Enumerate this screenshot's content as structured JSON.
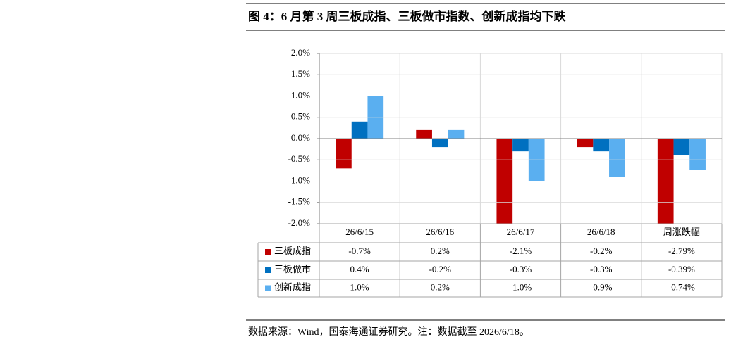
{
  "title": "图 4：6 月第 3 周三板成指、三板做市指数、创新成指均下跌",
  "source": "数据来源：Wind，国泰海通证券研究。注：数据截至 2026/6/18。",
  "chart_data": {
    "type": "bar",
    "categories": [
      "26/6/15",
      "26/6/16",
      "26/6/17",
      "26/6/18",
      "周涨跌幅"
    ],
    "series": [
      {
        "name": "三板成指",
        "color": "#c00000",
        "values": [
          -0.7,
          0.2,
          -2.1,
          -0.2,
          -2.79
        ],
        "value_labels": [
          "-0.7%",
          "0.2%",
          "-2.1%",
          "-0.2%",
          "-2.79%"
        ]
      },
      {
        "name": "三板做市",
        "color": "#0070c0",
        "values": [
          0.4,
          -0.2,
          -0.3,
          -0.3,
          -0.39
        ],
        "value_labels": [
          "0.4%",
          "-0.2%",
          "-0.3%",
          "-0.3%",
          "-0.39%"
        ]
      },
      {
        "name": "创新成指",
        "color": "#5aaff0",
        "values": [
          1.0,
          0.2,
          -1.0,
          -0.9,
          -0.74
        ],
        "value_labels": [
          "1.0%",
          "0.2%",
          "-1.0%",
          "-0.9%",
          "-0.74%"
        ]
      }
    ],
    "ylim": [
      -2,
      2
    ],
    "yticks": [
      {
        "value": 2,
        "label": "2.0%"
      },
      {
        "value": 1.5,
        "label": "1.5%"
      },
      {
        "value": 1,
        "label": "1.0%"
      },
      {
        "value": 0.5,
        "label": "0.5%"
      },
      {
        "value": 0,
        "label": "0.0%"
      },
      {
        "value": -0.5,
        "label": "-0.5%"
      },
      {
        "value": -1,
        "label": "-1.0%"
      },
      {
        "value": -1.5,
        "label": "-1.5%"
      },
      {
        "value": -2,
        "label": "-2.0%"
      }
    ],
    "grid": true
  }
}
